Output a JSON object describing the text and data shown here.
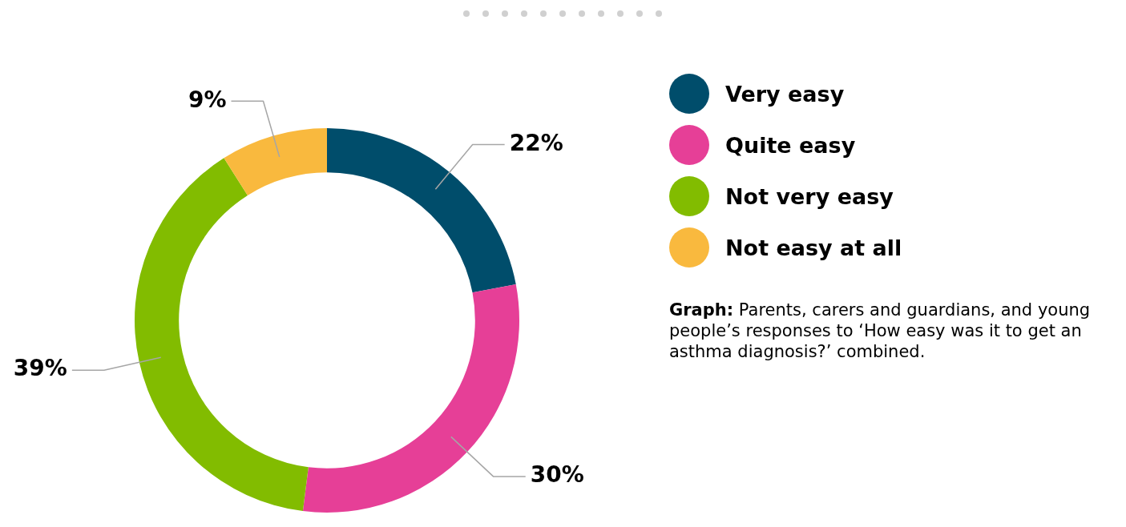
{
  "chart_data": {
    "type": "donut",
    "categories": [
      "Very easy",
      "Quite easy",
      "Not very easy",
      "Not easy at all"
    ],
    "values": [
      22,
      30,
      39,
      9
    ],
    "colors": [
      "#004d6b",
      "#e63f97",
      "#82bc00",
      "#f9b93e"
    ],
    "value_labels": [
      "22%",
      "30%",
      "39%",
      "9%"
    ],
    "legend": "top right",
    "annotations": [
      "Graph: Parents, carers and guardians, and young people’s responses to ‘How easy was it to get an asthma diagnosis?’ combined."
    ]
  }
}
